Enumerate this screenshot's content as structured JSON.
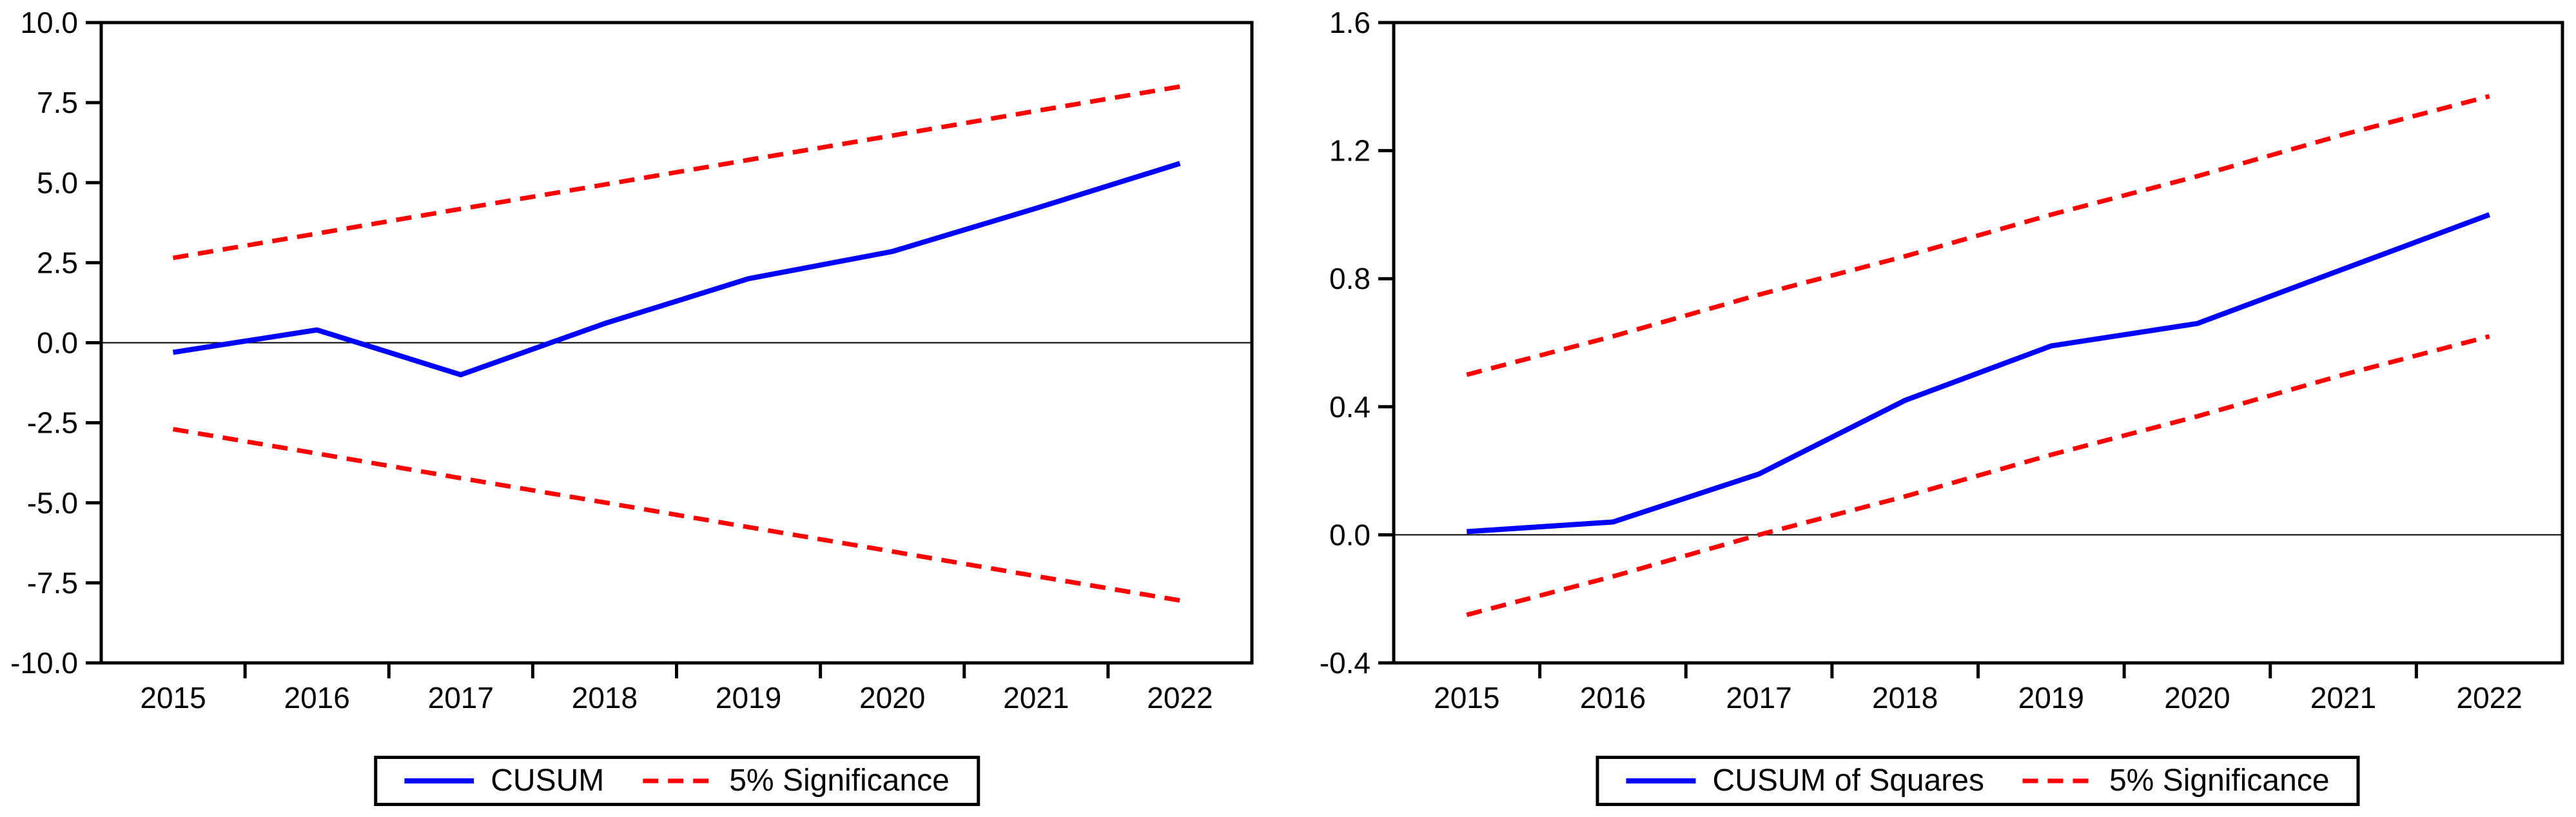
{
  "figure": {
    "background": "#ffffff",
    "axis_color": "#000000",
    "zero_line_color": "#000000"
  },
  "chart_data": [
    {
      "type": "line",
      "title": "",
      "xlabel": "",
      "ylabel": "",
      "x": [
        2015,
        2016,
        2017,
        2018,
        2019,
        2020,
        2021,
        2022
      ],
      "ylim": [
        -10.0,
        10.0
      ],
      "yticks": [
        10.0,
        7.5,
        5.0,
        2.5,
        0.0,
        -2.5,
        -5.0,
        -7.5,
        -10.0
      ],
      "grid": false,
      "zero_line": true,
      "legend_position": "bottom-center",
      "series": [
        {
          "name": "CUSUM",
          "color": "#0000ff",
          "dash": false,
          "values": [
            -0.3,
            0.4,
            -1.0,
            0.6,
            2.0,
            2.85,
            4.2,
            5.6
          ]
        },
        {
          "name": "5% Significance (upper)",
          "color": "#ff0000",
          "dash": true,
          "values": [
            2.65,
            3.41,
            4.18,
            4.94,
            5.71,
            6.47,
            7.24,
            8.0
          ]
        },
        {
          "name": "5% Significance (lower)",
          "color": "#ff0000",
          "dash": true,
          "values": [
            -2.7,
            -3.46,
            -4.23,
            -4.99,
            -5.76,
            -6.52,
            -7.29,
            -8.05
          ]
        }
      ],
      "legend": [
        {
          "label": "CUSUM",
          "color": "#0000ff",
          "dash": false
        },
        {
          "label": "5% Significance",
          "color": "#ff0000",
          "dash": true
        }
      ]
    },
    {
      "type": "line",
      "title": "",
      "xlabel": "",
      "ylabel": "",
      "x": [
        2015,
        2016,
        2017,
        2018,
        2019,
        2020,
        2021,
        2022
      ],
      "ylim": [
        -0.4,
        1.6
      ],
      "yticks": [
        1.6,
        1.2,
        0.8,
        0.4,
        0.0,
        -0.4
      ],
      "grid": false,
      "zero_line": true,
      "legend_position": "bottom-center",
      "series": [
        {
          "name": "CUSUM of Squares",
          "color": "#0000ff",
          "dash": false,
          "values": [
            0.01,
            0.04,
            0.19,
            0.42,
            0.59,
            0.66,
            0.83,
            1.0
          ]
        },
        {
          "name": "5% Significance (upper)",
          "color": "#ff0000",
          "dash": true,
          "values": [
            0.5,
            0.62,
            0.75,
            0.87,
            1.0,
            1.12,
            1.25,
            1.37
          ]
        },
        {
          "name": "5% Significance (lower)",
          "color": "#ff0000",
          "dash": true,
          "values": [
            -0.25,
            -0.13,
            0.0,
            0.12,
            0.25,
            0.37,
            0.5,
            0.62
          ]
        }
      ],
      "legend": [
        {
          "label": "CUSUM of Squares",
          "color": "#0000ff",
          "dash": false
        },
        {
          "label": "5% Significance",
          "color": "#ff0000",
          "dash": true
        }
      ]
    }
  ]
}
